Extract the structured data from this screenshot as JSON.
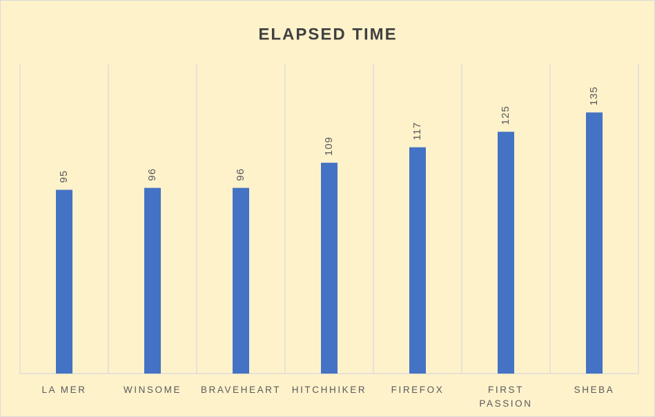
{
  "chart_data": {
    "type": "bar",
    "title": "ELAPSED TIME",
    "categories": [
      "LA MER",
      "WINSOME",
      "BRAVEHEART",
      "HITCHHIKER",
      "FIREFOX",
      "FIRST PASSION",
      "SHEBA"
    ],
    "values": [
      95,
      96,
      96,
      109,
      117,
      125,
      135
    ],
    "color": "#4472c4",
    "ylim": [
      0,
      160
    ]
  }
}
